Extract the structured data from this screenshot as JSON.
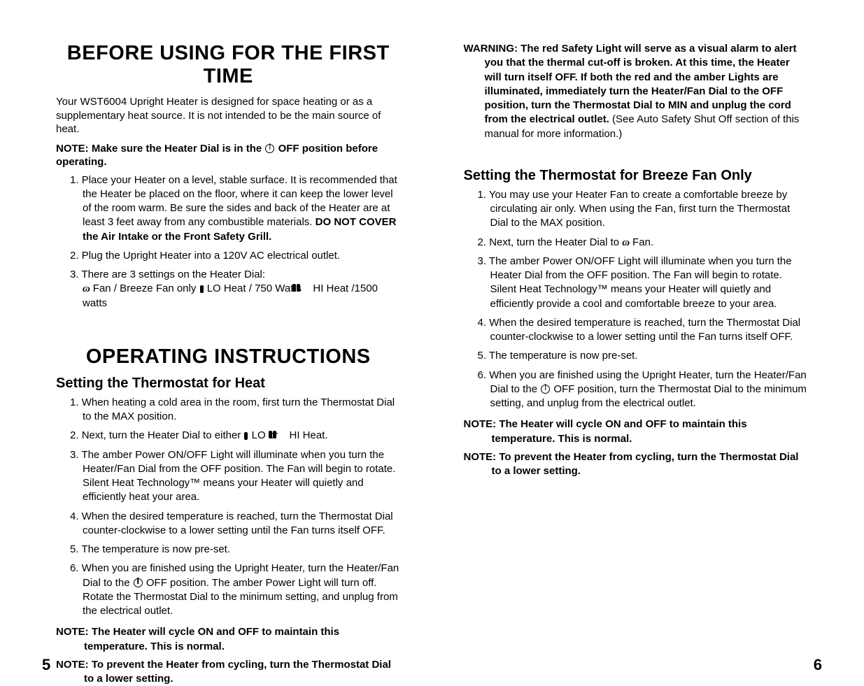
{
  "left": {
    "h1a": "BEFORE USING FOR THE FIRST TIME",
    "intro": "Your WST6004 Upright Heater is designed for space heating or as a supplementary heat source. It is not intended to be the main source of heat.",
    "note1_pre": "NOTE: Make sure the Heater Dial is in the ",
    "note1_post": " OFF position before operating.",
    "before_steps": {
      "s1_a": "Place your Heater on a level, stable surface. It is recommended that the Heater be placed on the floor, where it can keep the lower level of the room warm. Be sure the sides and back of the Heater are at least 3 feet away from any combustible materials. ",
      "s1_b": "DO NOT COVER the Air Intake or the Front Safety Grill.",
      "s2": "Plug the Upright Heater into a 120V AC electrical outlet.",
      "s3_a": "There are 3 settings on the Heater Dial:",
      "s3_b1": " Fan / Breeze Fan only  ",
      "s3_b2": " LO Heat / 750 Watts ",
      "s3_b3": " HI Heat /1500 watts"
    },
    "h1b": "OPERATING INSTRUCTIONS",
    "h2a": "Setting the Thermostat for Heat",
    "heat_steps": {
      "s1": "When heating a cold area in the room, first turn the Thermostat Dial to the MAX position.",
      "s2_a": "Next, turn the Heater Dial to either ",
      "s2_b": " LO  or  ",
      "s2_c": " HI Heat.",
      "s3": "The amber Power ON/OFF Light will illuminate when you turn the Heater/Fan Dial from the OFF position. The Fan will begin to rotate. Silent Heat Technology™ means your Heater will quietly and efficiently heat your area.",
      "s4": "When the desired temperature is reached, turn the Thermostat Dial counter-clockwise to a lower setting until the Fan turns itself OFF.",
      "s5": "The temperature is now pre-set.",
      "s6_a": "When you are finished using the Upright Heater, turn the Heater/Fan Dial to the ",
      "s6_b": " OFF position. The amber Power Light will turn off. Rotate the Thermostat Dial to the minimum setting, and unplug from the electrical outlet."
    },
    "note_cycle": "NOTE: The Heater will cycle ON and OFF to maintain this temperature. This is normal.",
    "note_prevent": "NOTE: To prevent the Heater from cycling, turn the Thermostat Dial to a lower setting.",
    "page": "5"
  },
  "right": {
    "warn_lead": "WARNING: The red Safety Light will serve as a visual alarm to alert you that the thermal cut-off is broken. At this time, the Heater will turn itself OFF. If both the red and the amber Lights are illuminated, immediately turn the Heater/Fan Dial to the OFF position, turn the Thermostat Dial to MIN and unplug the cord from the electrical outlet. ",
    "warn_tail": "(See Auto Safety Shut Off section of this manual for more information.)",
    "h2b": "Setting the Thermostat for Breeze Fan Only",
    "fan_steps": {
      "s1": "You may use your Heater Fan to create a comfortable breeze by circulating air only. When using the Fan, first turn the Thermostat Dial to the MAX position.",
      "s2_a": "Next, turn the Heater Dial to ",
      "s2_b": " Fan.",
      "s3": "The amber Power ON/OFF Light will illuminate when you turn the Heater Dial from the OFF position. The Fan will begin to rotate. Silent Heat Technology™ means your Heater will quietly and efficiently provide a cool and comfortable breeze to your area.",
      "s4": "When the desired temperature is reached, turn the Thermostat Dial counter-clockwise to a lower setting until the Fan turns itself OFF.",
      "s5": "The temperature is now pre-set.",
      "s6_a": "When you are finished using the Upright Heater, turn the Heater/Fan Dial to the ",
      "s6_b": " OFF position, turn the Thermostat Dial to the minimum setting, and unplug from the electrical outlet."
    },
    "note_cycle": "NOTE: The Heater will cycle ON and OFF to maintain this temperature. This is normal.",
    "note_prevent": "NOTE: To prevent the Heater from cycling, turn the Thermostat Dial to a lower setting.",
    "page": "6"
  }
}
